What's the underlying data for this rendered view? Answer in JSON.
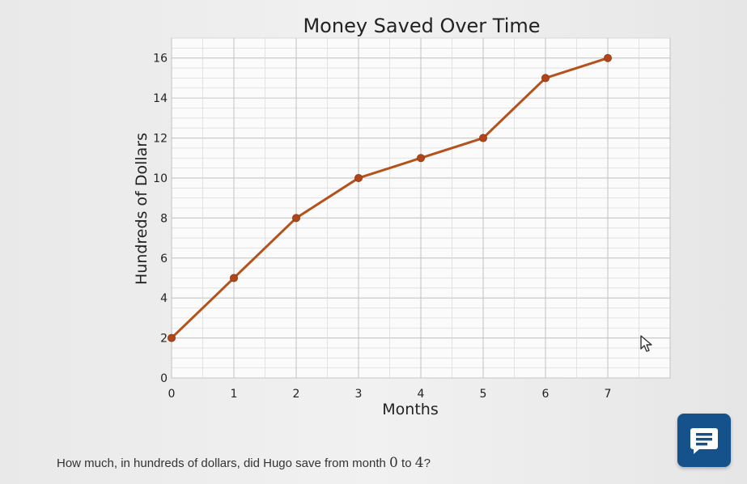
{
  "chart_data": {
    "type": "line",
    "title": "Money Saved Over Time",
    "xlabel": "Months",
    "ylabel": "Hundreds of Dollars",
    "x": [
      0,
      1,
      2,
      3,
      4,
      5,
      6,
      7
    ],
    "series": [
      {
        "values": [
          2,
          5,
          8,
          10,
          11,
          12,
          15,
          16
        ]
      }
    ],
    "xlim": [
      0,
      8
    ],
    "ylim": [
      0,
      17
    ],
    "x_ticks": [
      "0",
      "1",
      "2",
      "3",
      "4",
      "5",
      "6",
      "7"
    ],
    "y_ticks": [
      "0",
      "2",
      "4",
      "6",
      "8",
      "10",
      "12",
      "14",
      "16"
    ],
    "grid": true,
    "line_color": "#b5521c",
    "marker_color": "#b0451a"
  },
  "question": {
    "prefix": "How much, in hundreds of dollars, did Hugo save from month ",
    "start": "0",
    "middle": " to ",
    "end": "4",
    "suffix": "?"
  },
  "icons": {
    "chat": "message-lines-icon",
    "cursor": "mouse-pointer-icon"
  },
  "colors": {
    "chat_button": "#15528c"
  }
}
